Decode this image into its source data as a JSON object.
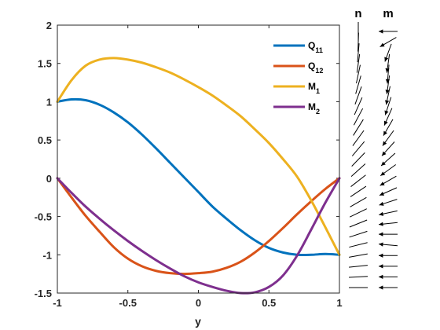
{
  "chart_data": {
    "type": "line",
    "xlabel": "y",
    "ylabel": "",
    "xlim": [
      -1,
      1
    ],
    "ylim": [
      -1.5,
      2
    ],
    "xticks": [
      "-1",
      "-0.5",
      "0",
      "0.5",
      "1"
    ],
    "yticks": [
      "-1.5",
      "-1",
      "-0.5",
      "0",
      "0.5",
      "1",
      "1.5",
      "2"
    ],
    "grid": false,
    "legend_position": "top-right",
    "series": [
      {
        "name": "Q11",
        "label_main": "Q",
        "label_sub": "11",
        "color": "#0072BD",
        "x": [
          -1,
          -0.9,
          -0.8,
          -0.7,
          -0.6,
          -0.5,
          -0.4,
          -0.3,
          -0.2,
          -0.1,
          0,
          0.1,
          0.2,
          0.3,
          0.4,
          0.5,
          0.6,
          0.7,
          0.8,
          0.9,
          1
        ],
        "y": [
          1.0,
          1.03,
          1.02,
          0.96,
          0.86,
          0.73,
          0.57,
          0.39,
          0.2,
          0.01,
          -0.18,
          -0.37,
          -0.53,
          -0.68,
          -0.81,
          -0.91,
          -0.97,
          -1.0,
          -1.0,
          -0.99,
          -1.0
        ]
      },
      {
        "name": "Q12",
        "label_main": "Q",
        "label_sub": "12",
        "color": "#D95319",
        "x": [
          -1,
          -0.9,
          -0.8,
          -0.7,
          -0.6,
          -0.5,
          -0.4,
          -0.3,
          -0.2,
          -0.1,
          0,
          0.1,
          0.2,
          0.3,
          0.4,
          0.5,
          0.6,
          0.7,
          0.8,
          0.9,
          1
        ],
        "y": [
          0.0,
          -0.25,
          -0.49,
          -0.7,
          -0.9,
          -1.05,
          -1.15,
          -1.21,
          -1.24,
          -1.25,
          -1.24,
          -1.22,
          -1.17,
          -1.09,
          -0.97,
          -0.82,
          -0.65,
          -0.47,
          -0.3,
          -0.14,
          0.0
        ]
      },
      {
        "name": "M1",
        "label_main": "M",
        "label_sub": "1",
        "color": "#EDB120",
        "x": [
          -1,
          -0.9,
          -0.8,
          -0.7,
          -0.6,
          -0.5,
          -0.4,
          -0.3,
          -0.2,
          -0.1,
          0,
          0.1,
          0.2,
          0.3,
          0.4,
          0.5,
          0.6,
          0.7,
          0.8,
          0.9,
          1
        ],
        "y": [
          1.0,
          1.28,
          1.47,
          1.55,
          1.57,
          1.55,
          1.51,
          1.45,
          1.38,
          1.29,
          1.19,
          1.08,
          0.95,
          0.81,
          0.64,
          0.46,
          0.25,
          0.02,
          -0.29,
          -0.64,
          -1.0
        ]
      },
      {
        "name": "M2",
        "label_main": "M",
        "label_sub": "2",
        "color": "#7E2F8E",
        "x": [
          -1,
          -0.9,
          -0.8,
          -0.7,
          -0.6,
          -0.5,
          -0.4,
          -0.3,
          -0.2,
          -0.1,
          0,
          0.1,
          0.2,
          0.3,
          0.4,
          0.5,
          0.6,
          0.7,
          0.8,
          0.9,
          1
        ],
        "y": [
          0.0,
          -0.19,
          -0.37,
          -0.53,
          -0.68,
          -0.82,
          -0.95,
          -1.07,
          -1.18,
          -1.28,
          -1.36,
          -1.42,
          -1.47,
          -1.5,
          -1.49,
          -1.42,
          -1.27,
          -1.01,
          -0.67,
          -0.32,
          0.0
        ]
      }
    ]
  },
  "director_panel": {
    "columns": [
      {
        "title": "n",
        "angles_deg": [
          90,
          88,
          85,
          82,
          78,
          74,
          70,
          66,
          62,
          58,
          54,
          50,
          46,
          42,
          38,
          34,
          30,
          26,
          22,
          18,
          14,
          10,
          6,
          3,
          0
        ]
      },
      {
        "title": "m",
        "angles_deg": [
          180,
          210,
          250,
          262,
          265,
          262,
          258,
          252,
          246,
          240,
          234,
          228,
          222,
          216,
          210,
          204,
          198,
          192,
          186,
          180,
          175,
          180,
          180,
          180,
          180
        ]
      }
    ]
  }
}
